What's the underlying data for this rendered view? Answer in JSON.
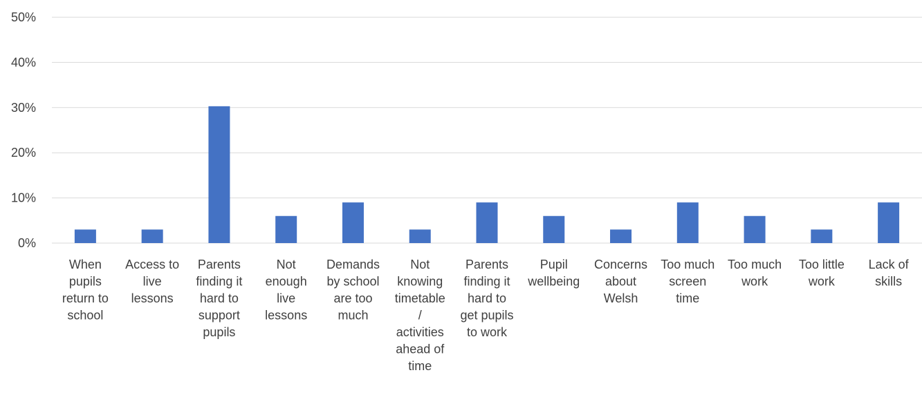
{
  "chart_data": {
    "type": "bar",
    "title": "",
    "xlabel": "",
    "ylabel": "",
    "ylim": [
      0,
      50
    ],
    "y_ticks": [
      "0%",
      "10%",
      "20%",
      "30%",
      "40%",
      "50%"
    ],
    "y_tick_values": [
      0,
      10,
      20,
      30,
      40,
      50
    ],
    "grid": true,
    "legend": "none",
    "bar_color": "#4472c4",
    "gridline_color": "#d9d9d9",
    "text_color": "#404040",
    "categories": [
      "When pupils return to school",
      "Access to live lessons",
      "Parents finding it hard to support pupils",
      "Not enough live lessons",
      "Demands by school are too much",
      "Not knowing timetable / activities ahead of time",
      "Parents finding it hard to get pupils to work",
      "Pupil wellbeing",
      "Concerns about Welsh",
      "Too much screen time",
      "Too much work",
      "Too little work",
      "Lack of skills"
    ],
    "category_label_lines": [
      [
        "When",
        "pupils",
        "return to",
        "school"
      ],
      [
        "Access to",
        "live",
        "lessons"
      ],
      [
        "Parents",
        "finding it",
        "hard to",
        "support",
        "pupils"
      ],
      [
        "Not",
        "enough",
        "live",
        "lessons"
      ],
      [
        "Demands",
        "by school",
        "are too",
        "much"
      ],
      [
        "Not",
        "knowing",
        "timetable",
        "/",
        "activities",
        "ahead of",
        "time"
      ],
      [
        "Parents",
        "finding it",
        "hard to",
        "get pupils",
        "to work"
      ],
      [
        "Pupil",
        "wellbeing"
      ],
      [
        "Concerns",
        "about",
        "Welsh"
      ],
      [
        "Too much",
        "screen",
        "time"
      ],
      [
        "Too much",
        "work"
      ],
      [
        "Too little",
        "work"
      ],
      [
        "Lack of",
        "skills"
      ]
    ],
    "values": [
      3,
      3,
      30.3,
      6,
      9,
      3,
      9,
      6,
      3,
      9,
      6,
      3,
      9
    ]
  }
}
